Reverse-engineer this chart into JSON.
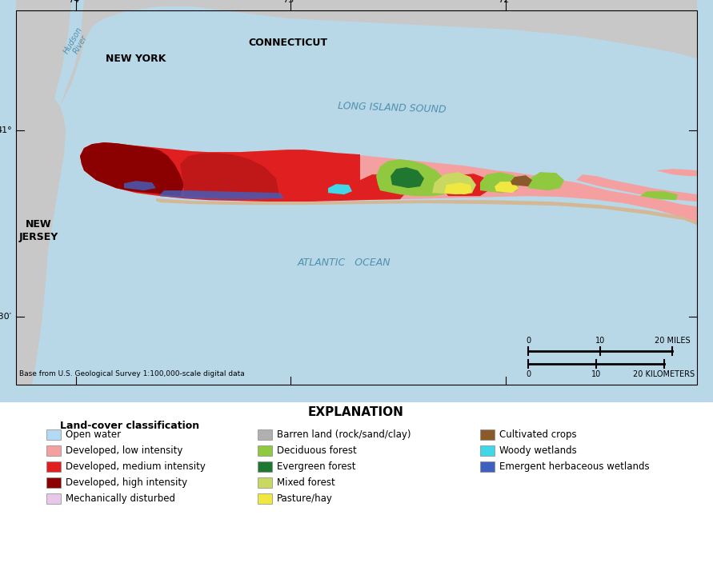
{
  "map_bg_color": "#b8d8e8",
  "land_gray_color": "#c8c8c8",
  "explanation_title": "EXPLANATION",
  "legend_header": "Land-cover classification",
  "legend_items_col1": [
    {
      "label": "Open water",
      "color": "#b3d9f5"
    },
    {
      "label": "Developed, low intensity",
      "color": "#f5a0a0"
    },
    {
      "label": "Developed, medium intensity",
      "color": "#e02020"
    },
    {
      "label": "Developed, high intensity",
      "color": "#8b0000"
    },
    {
      "label": "Mechanically disturbed",
      "color": "#e8c8e8"
    }
  ],
  "legend_items_col2": [
    {
      "label": "Barren land (rock/sand/clay)",
      "color": "#b0b0b0"
    },
    {
      "label": "Deciduous forest",
      "color": "#90c840"
    },
    {
      "label": "Evergreen forest",
      "color": "#207830"
    },
    {
      "label": "Mixed forest",
      "color": "#c8d860"
    },
    {
      "label": "Pasture/hay",
      "color": "#f0e840"
    }
  ],
  "legend_items_col3": [
    {
      "label": "Cultivated crops",
      "color": "#8b5a2b"
    },
    {
      "label": "Woody wetlands",
      "color": "#40d8e8"
    },
    {
      "label": "Emergent herbaceous wetlands",
      "color": "#4060c0"
    }
  ],
  "base_text": "Base from U.S. Geological Survey 1:100,000-scale digital data"
}
